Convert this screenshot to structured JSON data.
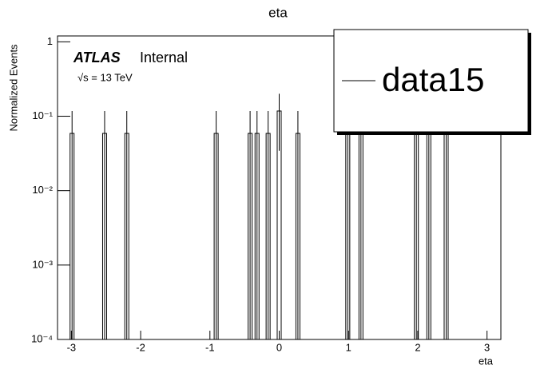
{
  "chart_data": {
    "type": "histogram",
    "title": "eta",
    "x_label": "eta",
    "y_label": "Normalized Events",
    "annotations": [
      "ATLAS",
      "Internal",
      "√s = 13 TeV"
    ],
    "x": [
      -2.99,
      -2.52,
      -2.2,
      -0.91,
      -0.42,
      -0.32,
      -0.16,
      0.0,
      0.27,
      0.99,
      1.18,
      1.98,
      2.16,
      2.41
    ],
    "series": [
      {
        "name": "data15",
        "color": "#000000",
        "values": [
          0.0588,
          0.0588,
          0.0588,
          0.0588,
          0.0588,
          0.0588,
          0.0588,
          0.1176,
          0.0588,
          0.0588,
          0.0588,
          0.0588,
          0.0588,
          0.0588
        ],
        "errors": [
          0.0588,
          0.0588,
          0.0588,
          0.0588,
          0.0588,
          0.0588,
          0.0588,
          0.0832,
          0.0588,
          0.0588,
          0.0588,
          0.0588,
          0.0588,
          0.0588
        ]
      }
    ],
    "xlim": [
      -3.2,
      3.2
    ],
    "xticks": [
      -3,
      -2,
      -1,
      0,
      1,
      2,
      3
    ],
    "ylim": [
      0.0001,
      1.2
    ],
    "log_y": true,
    "yticks": [
      {
        "value": 0.0001,
        "label": "10⁻⁴"
      },
      {
        "value": 0.001,
        "label": "10⁻³"
      },
      {
        "value": 0.01,
        "label": "10⁻²"
      },
      {
        "value": 0.1,
        "label": "10⁻¹"
      },
      1
    ],
    "legend": "top-right"
  }
}
